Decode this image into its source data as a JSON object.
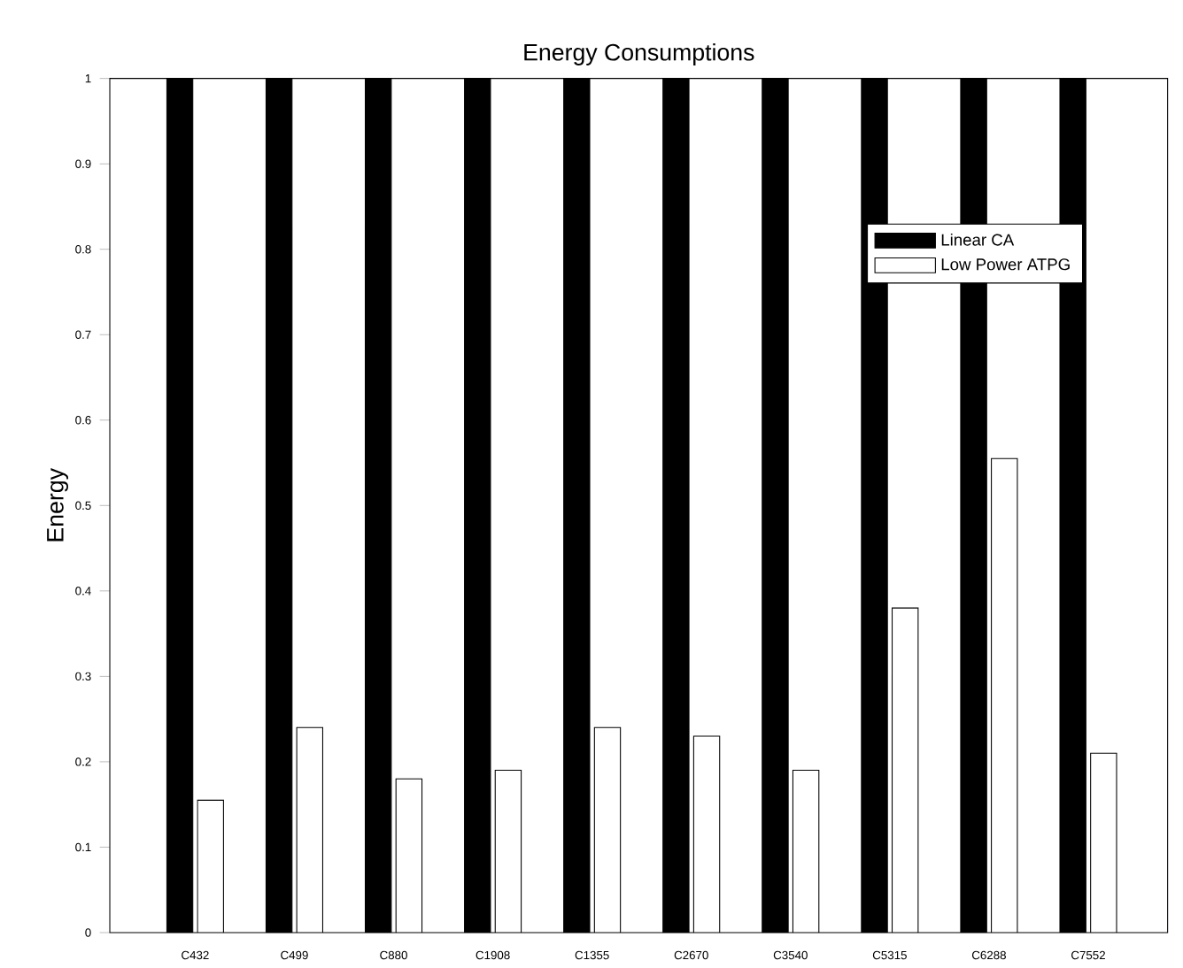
{
  "chart_data": {
    "type": "bar",
    "title": "Energy Consumptions",
    "ylabel": "Energy",
    "categories": [
      "C432",
      "C499",
      "C880",
      "C1908",
      "C1355",
      "C2670",
      "C3540",
      "C5315",
      "C6288",
      "C7552"
    ],
    "series": [
      {
        "name": "Linear CA",
        "color": "#000000",
        "values": [
          1,
          1,
          1,
          1,
          1,
          1,
          1,
          1,
          1,
          1
        ]
      },
      {
        "name": "Low Power ATPG",
        "color": "#ffffff",
        "values": [
          0.155,
          0.24,
          0.18,
          0.19,
          0.24,
          0.23,
          0.19,
          0.38,
          0.555,
          0.21
        ]
      }
    ],
    "ylim": [
      0,
      1
    ],
    "yticks": [
      0,
      0.1,
      0.2,
      0.3,
      0.4,
      0.5,
      0.6,
      0.7,
      0.8,
      0.9,
      1
    ],
    "grid": false,
    "legend": "top right"
  }
}
